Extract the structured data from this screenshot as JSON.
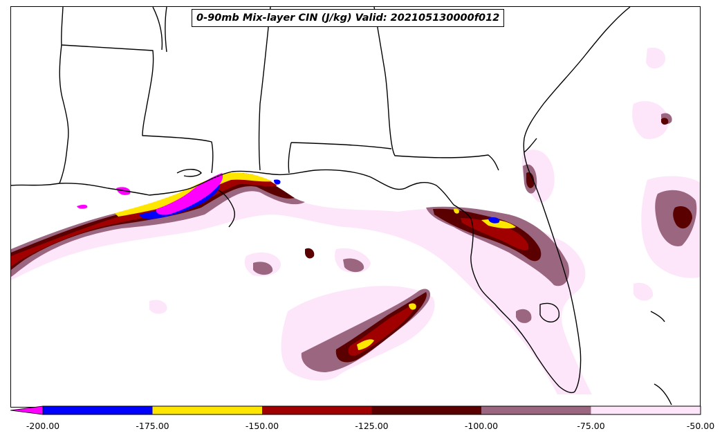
{
  "title": "0-90mb Mix-layer CIN (J/kg) Valid: 202105130000f012",
  "colorbar": {
    "extend": "min",
    "extend_color": "#ff00ff",
    "levels": [
      -200,
      -175,
      -150,
      -125,
      -100,
      -75,
      -50
    ],
    "colors": [
      "#0000ff",
      "#ffe600",
      "#a00000",
      "#5a0000",
      "#9a6680",
      "#fde6fa"
    ],
    "tick_labels": [
      "-200.00",
      "-175.00",
      "-150.00",
      "-125.00",
      "-100.00",
      "-75.00",
      "-50.00"
    ]
  }
}
